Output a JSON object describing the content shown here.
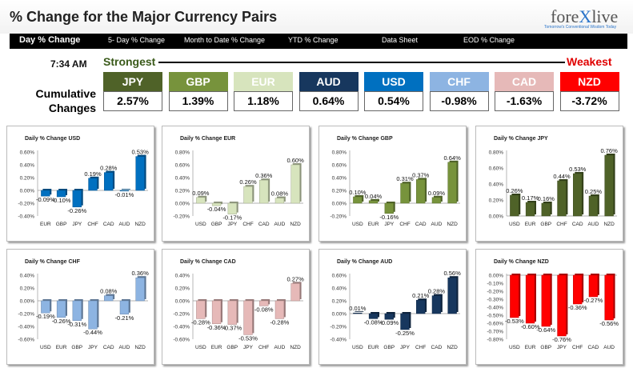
{
  "header": {
    "title": "% Change for the Major Currency Pairs",
    "logo_prefix": "fore",
    "logo_x": "X",
    "logo_suffix": "live",
    "tagline": "Tomorrow's Conventional Wisdom Today"
  },
  "nav": {
    "items": [
      "Day % Change",
      "5- Day % Change",
      "Month to Date % Change",
      "YTD % Change",
      "Data Sheet",
      "EOD % Change"
    ]
  },
  "ranking": {
    "time": "7:34 AM",
    "strongest_label": "Strongest",
    "weakest_label": "Weakest",
    "cumulative_label": "Cumulative Changes",
    "currencies": [
      {
        "name": "JPY",
        "value": "2.57%",
        "color": "#4f6228"
      },
      {
        "name": "GBP",
        "value": "1.39%",
        "color": "#77933c"
      },
      {
        "name": "EUR",
        "value": "1.18%",
        "color": "#d7e4bd"
      },
      {
        "name": "AUD",
        "value": "0.64%",
        "color": "#17375e"
      },
      {
        "name": "USD",
        "value": "0.54%",
        "color": "#0070c0"
      },
      {
        "name": "CHF",
        "value": "-0.98%",
        "color": "#8db4e2"
      },
      {
        "name": "CAD",
        "value": "-1.63%",
        "color": "#e6b9b8"
      },
      {
        "name": "NZD",
        "value": "-3.72%",
        "color": "#ff0000"
      }
    ]
  },
  "chart_data": [
    {
      "type": "bar",
      "title": "Daily % Change USD",
      "categories": [
        "EUR",
        "GBP",
        "JPY",
        "CHF",
        "CAD",
        "AUD",
        "NZD"
      ],
      "values": [
        -0.09,
        -0.1,
        -0.26,
        0.19,
        0.28,
        -0.01,
        0.53
      ],
      "labels": [
        "-0.09%",
        "-0.10%",
        "-0.26%",
        "0.19%",
        "0.28%",
        "-0.01%",
        "0.53%"
      ],
      "ylim": [
        -0.4,
        0.6
      ],
      "ticks": [
        "0.60%",
        "0.40%",
        "0.20%",
        "0.00%",
        "-0.20%",
        "-0.40%"
      ],
      "tick_values": [
        0.6,
        0.4,
        0.2,
        0,
        -0.2,
        -0.4
      ],
      "color": "#0070c0"
    },
    {
      "type": "bar",
      "title": "Daily % Change EUR",
      "categories": [
        "USD",
        "GBP",
        "JPY",
        "CHF",
        "CAD",
        "AUD",
        "NZD"
      ],
      "values": [
        0.09,
        -0.04,
        -0.17,
        0.26,
        0.36,
        0.08,
        0.6
      ],
      "labels": [
        "0.09%",
        "-0.04%",
        "-0.17%",
        "0.26%",
        "0.36%",
        "0.08%",
        "0.60%"
      ],
      "ylim": [
        -0.2,
        0.8
      ],
      "ticks": [
        "0.80%",
        "0.60%",
        "0.40%",
        "0.20%",
        "0.00%",
        "-0.20%"
      ],
      "tick_values": [
        0.8,
        0.6,
        0.4,
        0.2,
        0,
        -0.2
      ],
      "color": "#d7e4bd"
    },
    {
      "type": "bar",
      "title": "Daily % Change GBP",
      "categories": [
        "USD",
        "EUR",
        "JPY",
        "CHF",
        "CAD",
        "AUD",
        "NZD"
      ],
      "values": [
        0.1,
        0.04,
        -0.16,
        0.31,
        0.37,
        0.09,
        0.64
      ],
      "labels": [
        "0.10%",
        "0.04%",
        "-0.16%",
        "0.31%",
        "0.37%",
        "0.09%",
        "0.64%"
      ],
      "ylim": [
        -0.2,
        0.8
      ],
      "ticks": [
        "0.80%",
        "0.60%",
        "0.40%",
        "0.20%",
        "0.00%",
        "-0.20%"
      ],
      "tick_values": [
        0.8,
        0.6,
        0.4,
        0.2,
        0,
        -0.2
      ],
      "color": "#77933c"
    },
    {
      "type": "bar",
      "title": "Daily % Change JPY",
      "categories": [
        "USD",
        "EUR",
        "GBP",
        "CHF",
        "CAD",
        "AUD",
        "NZD"
      ],
      "values": [
        0.26,
        0.17,
        0.16,
        0.44,
        0.53,
        0.25,
        0.76
      ],
      "labels": [
        "0.26%",
        "0.17%",
        "0.16%",
        "0.44%",
        "0.53%",
        "0.25%",
        "0.76%"
      ],
      "ylim": [
        0,
        0.8
      ],
      "ticks": [
        "0.80%",
        "0.60%",
        "0.40%",
        "0.20%",
        "0.00%"
      ],
      "tick_values": [
        0.8,
        0.6,
        0.4,
        0.2,
        0
      ],
      "color": "#4f6228"
    },
    {
      "type": "bar",
      "title": "Daily % Change CHF",
      "categories": [
        "USD",
        "EUR",
        "GBP",
        "JPY",
        "CAD",
        "AUD",
        "NZD"
      ],
      "values": [
        -0.19,
        -0.26,
        -0.31,
        -0.44,
        0.08,
        -0.21,
        0.36
      ],
      "labels": [
        "-0.19%",
        "-0.26%",
        "-0.31%",
        "-0.44%",
        "0.08%",
        "-0.21%",
        "0.36%"
      ],
      "ylim": [
        -0.6,
        0.4
      ],
      "ticks": [
        "0.40%",
        "0.20%",
        "0.00%",
        "-0.20%",
        "-0.40%",
        "-0.60%"
      ],
      "tick_values": [
        0.4,
        0.2,
        0,
        -0.2,
        -0.4,
        -0.6
      ],
      "color": "#8db4e2"
    },
    {
      "type": "bar",
      "title": "Daily % Change CAD",
      "categories": [
        "USD",
        "EUR",
        "GBP",
        "JPY",
        "CHF",
        "AUD",
        "NZD"
      ],
      "values": [
        -0.28,
        -0.36,
        -0.37,
        -0.53,
        -0.08,
        -0.28,
        0.27
      ],
      "labels": [
        "-0.28%",
        "-0.36%",
        "-0.37%",
        "-0.53%",
        "-0.08%",
        "-0.28%",
        "0.27%"
      ],
      "ylim": [
        -0.6,
        0.4
      ],
      "ticks": [
        "0.40%",
        "0.20%",
        "0.00%",
        "-0.20%",
        "-0.40%",
        "-0.60%"
      ],
      "tick_values": [
        0.4,
        0.2,
        0,
        -0.2,
        -0.4,
        -0.6
      ],
      "color": "#e6b9b8"
    },
    {
      "type": "bar",
      "title": "Daily % Change AUD",
      "categories": [
        "USD",
        "EUR",
        "GBP",
        "JPY",
        "CHF",
        "CAD",
        "NZD"
      ],
      "values": [
        0.01,
        -0.08,
        -0.09,
        -0.25,
        0.21,
        0.28,
        0.56
      ],
      "labels": [
        "0.01%",
        "-0.08%",
        "-0.09%",
        "-0.25%",
        "0.21%",
        "0.28%",
        "0.56%"
      ],
      "ylim": [
        -0.4,
        0.6
      ],
      "ticks": [
        "0.60%",
        "0.40%",
        "0.20%",
        "0.00%",
        "-0.20%",
        "-0.40%"
      ],
      "tick_values": [
        0.6,
        0.4,
        0.2,
        0,
        -0.2,
        -0.4
      ],
      "color": "#17375e"
    },
    {
      "type": "bar",
      "title": "Daily % Change NZD",
      "categories": [
        "USD",
        "EUR",
        "GBP",
        "JPY",
        "CHF",
        "CAD",
        "AUD"
      ],
      "values": [
        -0.53,
        -0.6,
        -0.64,
        -0.76,
        -0.36,
        -0.27,
        -0.56
      ],
      "labels": [
        "-0.53%",
        "-0.60%",
        "-0.64%",
        "-0.76%",
        "-0.36%",
        "-0.27%",
        "-0.56%"
      ],
      "ylim": [
        -0.8,
        0
      ],
      "ticks": [
        "0.00%",
        "-0.10%",
        "-0.20%",
        "-0.30%",
        "-0.40%",
        "-0.50%",
        "-0.60%",
        "-0.70%",
        "-0.80%"
      ],
      "tick_values": [
        0,
        -0.1,
        -0.2,
        -0.3,
        -0.4,
        -0.5,
        -0.6,
        -0.7,
        -0.8
      ],
      "color": "#ff0000"
    }
  ]
}
